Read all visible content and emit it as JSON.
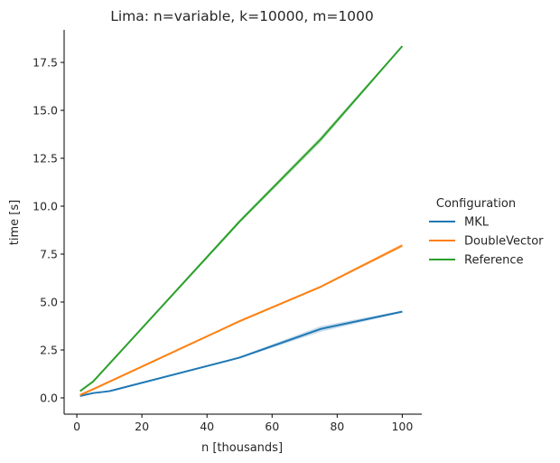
{
  "chart_data": {
    "type": "line",
    "title": "Lima: n=variable, k=10000, m=1000",
    "xlabel": "n [thousands]",
    "ylabel": "time [s]",
    "xlim": [
      -3.9,
      106
    ],
    "ylim": [
      -0.85,
      19.2
    ],
    "xticks": [
      0,
      20,
      40,
      60,
      80,
      100
    ],
    "xtick_labels": [
      "0",
      "20",
      "40",
      "60",
      "80",
      "100"
    ],
    "yticks": [
      0,
      2.5,
      5,
      7.5,
      10,
      12.5,
      15,
      17.5
    ],
    "ytick_labels": [
      "0.0",
      "2.5",
      "5.0",
      "7.5",
      "10.0",
      "12.5",
      "15.0",
      "17.5"
    ],
    "grid": false,
    "legend": {
      "title": "Configuration",
      "placement": "right"
    },
    "series": [
      {
        "name": "MKL",
        "color": "#1f77b4",
        "x": [
          1,
          5,
          10,
          50,
          75,
          100
        ],
        "values": [
          0.1,
          0.25,
          0.35,
          2.1,
          3.6,
          4.5
        ],
        "ci_low": [
          0.08,
          0.22,
          0.32,
          2.05,
          3.45,
          4.45
        ],
        "ci_high": [
          0.12,
          0.28,
          0.38,
          2.15,
          3.75,
          4.55
        ]
      },
      {
        "name": "DoubleVector",
        "color": "#ff7f0e",
        "x": [
          1,
          5,
          50,
          75,
          100
        ],
        "values": [
          0.15,
          0.45,
          4.0,
          5.8,
          7.95
        ],
        "ci_low": [
          0.13,
          0.43,
          3.95,
          5.75,
          7.85
        ],
        "ci_high": [
          0.17,
          0.47,
          4.05,
          5.85,
          8.05
        ]
      },
      {
        "name": "Reference",
        "color": "#2ca02c",
        "x": [
          1,
          5,
          50,
          75,
          100
        ],
        "values": [
          0.35,
          0.85,
          9.2,
          13.5,
          18.35
        ],
        "ci_low": [
          0.33,
          0.82,
          9.1,
          13.35,
          18.3
        ],
        "ci_high": [
          0.37,
          0.88,
          9.3,
          13.65,
          18.4
        ]
      }
    ]
  }
}
